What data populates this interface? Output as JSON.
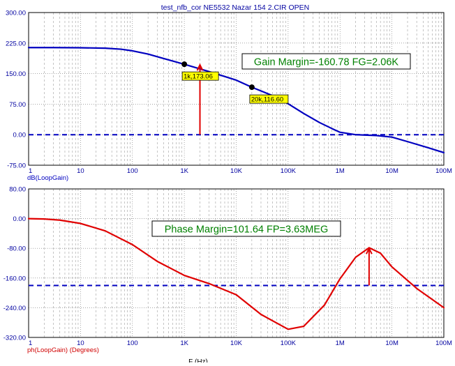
{
  "window_title": "test_nfb_cor NE5532 Nazar 154  2.CIR OPEN",
  "x_axis": {
    "label": "F (Hz)",
    "scale": "log",
    "range": [
      1,
      100000000
    ],
    "ticks": [
      {
        "value": 1,
        "label": "1"
      },
      {
        "value": 10,
        "label": "10"
      },
      {
        "value": 100,
        "label": "100"
      },
      {
        "value": 1000,
        "label": "1K"
      },
      {
        "value": 10000,
        "label": "10K"
      },
      {
        "value": 100000,
        "label": "100K"
      },
      {
        "value": 1000000,
        "label": "1M"
      },
      {
        "value": 10000000,
        "label": "10M"
      },
      {
        "value": 100000000,
        "label": "100M"
      }
    ]
  },
  "chart_data": [
    {
      "type": "line",
      "title": "test_nfb_cor NE5532 Nazar 154  2.CIR OPEN",
      "ylabel": "dB(LoopGain)",
      "xlabel": "",
      "xscale": "log",
      "xlim": [
        1,
        100000000
      ],
      "ylim": [
        -75,
        300
      ],
      "yticks": [
        300,
        225,
        150,
        75,
        0,
        -75
      ],
      "ytick_labels": [
        "300.00",
        "225.00",
        "150.00",
        "75.00",
        "0.00",
        "-75.00"
      ],
      "grid": true,
      "series": [
        {
          "name": "dB(LoopGain)",
          "color": "#0000c0",
          "x": [
            1,
            3,
            10,
            30,
            60,
            100,
            200,
            400,
            1000,
            3000,
            10000,
            20000,
            50000,
            100000,
            200000,
            400000,
            700000,
            1000000,
            2000000,
            3000000,
            5000000,
            10000000,
            20000000,
            50000000,
            100000000
          ],
          "y": [
            214,
            214,
            213.5,
            212.5,
            210,
            206,
            198,
            187,
            173,
            155,
            134,
            116.6,
            96,
            76,
            52,
            30,
            15,
            6,
            0,
            -1,
            -2,
            -6,
            -17,
            -32,
            -44
          ]
        }
      ],
      "reference_line": {
        "y": 0,
        "color": "#0000c0",
        "style": "dashed"
      },
      "markers": [
        {
          "x": 1000,
          "y": 173.06,
          "label": "1k,173.06"
        },
        {
          "x": 20000,
          "y": 116.6,
          "label": "20k,116.60"
        }
      ],
      "annotation_arrow": {
        "x": 2000,
        "y_from": 0,
        "y_to": 173.06,
        "color": "#e00000"
      },
      "annotation_box": "Gain Margin=-160.78 FG=2.06K"
    },
    {
      "type": "line",
      "title": "",
      "ylabel": "ph(LoopGain) (Degrees)",
      "xlabel": "F (Hz)",
      "xscale": "log",
      "xlim": [
        1,
        100000000
      ],
      "ylim": [
        -320,
        80
      ],
      "yticks": [
        80,
        0,
        -80,
        -160,
        -240,
        -320
      ],
      "ytick_labels": [
        "80.00",
        "0.00",
        "-80.00",
        "-160.00",
        "-240.00",
        "-320.00"
      ],
      "grid": true,
      "series": [
        {
          "name": "ph(LoopGain)",
          "color": "#e00000",
          "x": [
            1,
            2,
            4,
            10,
            30,
            100,
            300,
            1000,
            3000,
            10000,
            30000,
            100000,
            200000,
            500000,
            1000000,
            2000000,
            3630000,
            6000000,
            10000000,
            30000000,
            100000000
          ],
          "y": [
            0,
            -1,
            -4,
            -13,
            -33,
            -70,
            -115,
            -153,
            -175,
            -205,
            -258,
            -298,
            -290,
            -233,
            -162,
            -104,
            -78.4,
            -93,
            -130,
            -188,
            -240
          ]
        }
      ],
      "reference_line": {
        "y": -180,
        "color": "#0000c0",
        "style": "dashed"
      },
      "annotation_arrow": {
        "x": 3630000,
        "y_from": -180,
        "y_to": -78.4,
        "color": "#e00000"
      },
      "annotation_box": "Phase Margin=101.64 FP=3.63MEG"
    }
  ]
}
